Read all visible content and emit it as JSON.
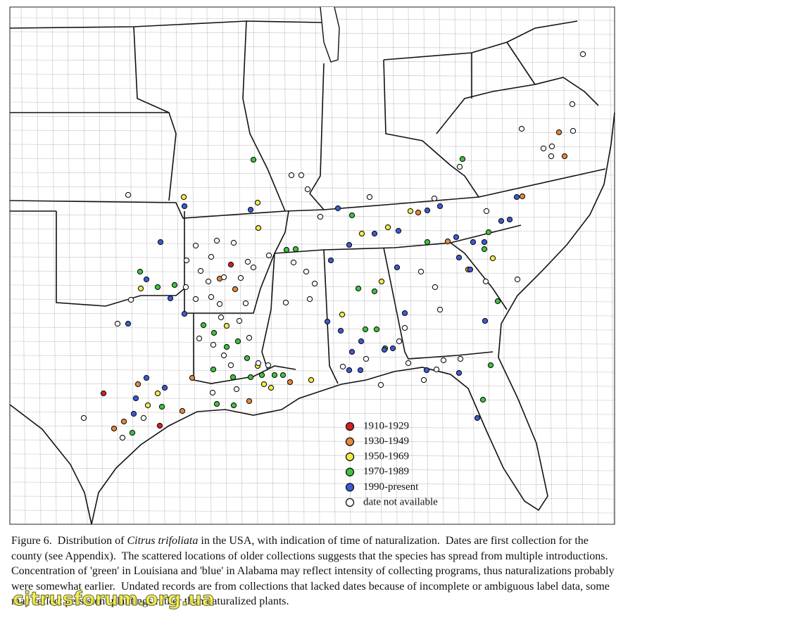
{
  "figure": {
    "legend": [
      {
        "label": "1910-1929",
        "color": "#d42020"
      },
      {
        "label": "1930-1949",
        "color": "#e8893a"
      },
      {
        "label": "1950-1969",
        "color": "#f3ec45"
      },
      {
        "label": "1970-1989",
        "color": "#3ec43c"
      },
      {
        "label": "1990-present",
        "color": "#3b5bd6"
      },
      {
        "label": "date not available",
        "color": "#ffffff"
      }
    ],
    "caption": {
      "label": "Figure 6.",
      "text_before": "Distribution of",
      "species": "Citrus trifoliata",
      "text_after": "in the USA, with indication of time of naturalization.  Dates are first collection for the county (see Appendix).  The scattered locations of older collections suggests that the species has spread from multiple introductions.  Concentration of 'green' in Louisiana and 'blue' in Alabama may reflect intensity of collecting programs, thus naturalizations probably were somewhat earlier.  Undated records are from collections that lacked dates because of incomplete or ambiguous label data, some may reflect persistent plantings rather than naturalized plants."
    },
    "watermark": "citrusforum.org.ua"
  }
}
